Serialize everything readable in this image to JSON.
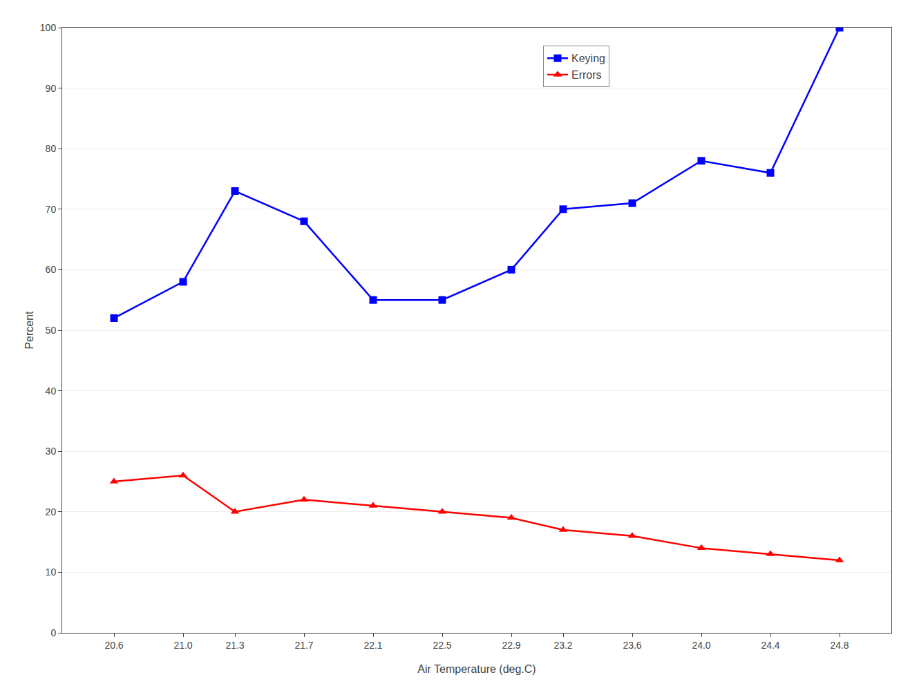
{
  "chart_data": {
    "type": "line",
    "x": [
      20.6,
      21.0,
      21.3,
      21.7,
      22.1,
      22.5,
      22.9,
      23.2,
      23.6,
      24.0,
      24.4,
      24.8
    ],
    "series": [
      {
        "name": "Keying",
        "color": "#0000FF",
        "marker": "square",
        "values": [
          52,
          58,
          73,
          68,
          55,
          55,
          60,
          70,
          71,
          78,
          76,
          100
        ]
      },
      {
        "name": "Errors",
        "color": "#FF0000",
        "marker": "triangle-up",
        "values": [
          25,
          26,
          20,
          22,
          21,
          20,
          19,
          17,
          16,
          14,
          13,
          12
        ]
      }
    ],
    "x_label": "Air Temperature (deg.C)",
    "y_label": "Percent",
    "xlim": [
      20.3,
      25.1
    ],
    "xticks": [
      20.6,
      {
        "value": 21.0,
        "label": "21.0"
      },
      21.3,
      21.7,
      22.1,
      22.5,
      22.9,
      23.2,
      23.6,
      {
        "value": 24.0,
        "label": "24.0"
      },
      24.4,
      24.8
    ],
    "ylim": [
      0,
      100
    ],
    "yticks": [
      0,
      10,
      20,
      30,
      40,
      50,
      60,
      70,
      80,
      90,
      100
    ],
    "grid": "y",
    "legend": "top"
  }
}
